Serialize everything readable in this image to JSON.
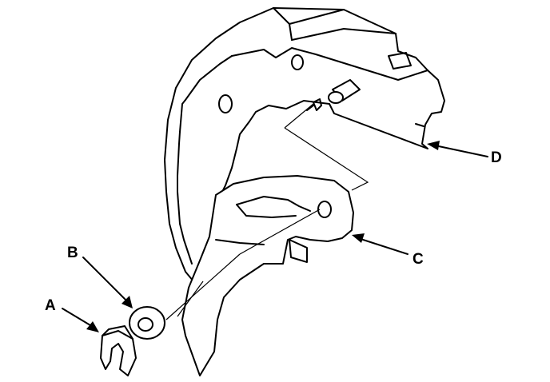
{
  "callouts": {
    "a": "A",
    "b": "B",
    "c": "C",
    "d": "D"
  },
  "colors": {
    "line": "#000000",
    "background": "#ffffff"
  }
}
